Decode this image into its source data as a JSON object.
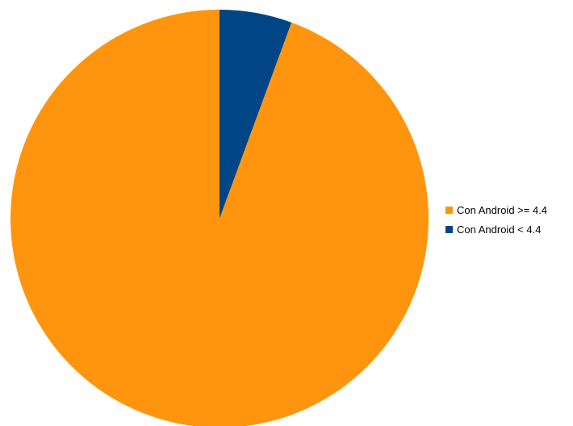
{
  "chart_data": {
    "type": "pie",
    "title": "",
    "start_angle_deg": 0,
    "direction": "clockwise",
    "legend_position": "right",
    "slices": [
      {
        "label": "Con Android < 4.4",
        "value": 5.6,
        "color": "#004586"
      },
      {
        "label": "Con Android >= 4.4",
        "value": 94.4,
        "color": "#ff950e"
      }
    ],
    "legend": [
      {
        "label": "Con Android >= 4.4",
        "color": "#ff950e"
      },
      {
        "label": "Con Android < 4.4",
        "color": "#004586"
      }
    ]
  }
}
